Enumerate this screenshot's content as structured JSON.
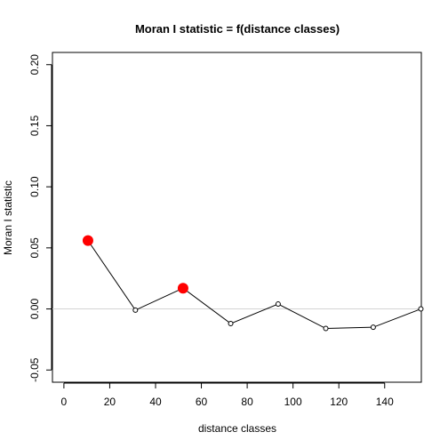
{
  "chart_data": {
    "type": "line",
    "title": "Moran I statistic = f(distance classes)",
    "xlabel": "distance classes",
    "ylabel": "Moran I statistic",
    "xlim": [
      -5,
      156
    ],
    "ylim": [
      -0.06,
      0.21
    ],
    "x_ticks": [
      0,
      20,
      40,
      60,
      80,
      100,
      120,
      140
    ],
    "y_ticks": [
      -0.05,
      0.0,
      0.05,
      0.1,
      0.15,
      0.2
    ],
    "y_tick_labels": [
      "-0.05",
      "0.00",
      "0.05",
      "0.10",
      "0.15",
      "0.20"
    ],
    "reference_line": {
      "y": 0,
      "color": "#d3d3d3"
    },
    "line_color": "#000000",
    "significant_color": "#ff0000",
    "points": [
      {
        "x": 10.5,
        "y": 0.056,
        "significant": true
      },
      {
        "x": 31.2,
        "y": -0.001,
        "significant": false
      },
      {
        "x": 52.0,
        "y": 0.017,
        "significant": true
      },
      {
        "x": 72.8,
        "y": -0.012,
        "significant": false
      },
      {
        "x": 93.5,
        "y": 0.004,
        "significant": false
      },
      {
        "x": 114.3,
        "y": -0.016,
        "significant": false
      },
      {
        "x": 135.0,
        "y": -0.015,
        "significant": false
      },
      {
        "x": 155.8,
        "y": 0.0,
        "significant": false
      }
    ]
  }
}
